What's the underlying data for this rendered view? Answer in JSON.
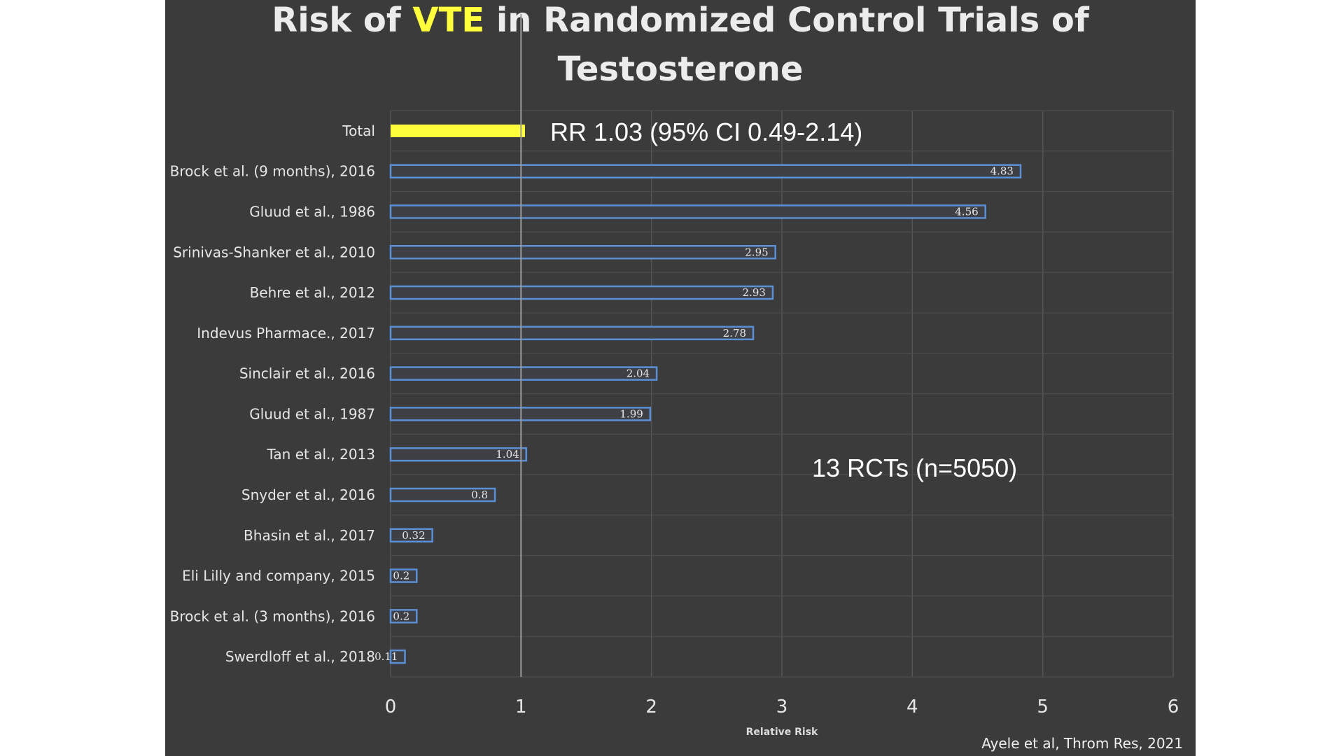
{
  "colors": {
    "background": "#3b3b3b",
    "highlight": "#ffff3c",
    "bar_outline": "#5b8fd6",
    "text": "#e6e6e6"
  },
  "title": {
    "part1": "Risk of ",
    "highlight": "VTE",
    "part2": " in Randomized Control Trials of",
    "line2": "Testosterone"
  },
  "annotations": {
    "summary": "RR 1.03 (95% CI 0.49-2.14)",
    "count": "13 RCTs (n=5050)"
  },
  "source": "Ayele et al, Throm Res, 2021",
  "chart_data": {
    "type": "bar",
    "orientation": "horizontal",
    "xlabel": "Relative Risk",
    "xlim": [
      0,
      6
    ],
    "xticks": [
      "0",
      "1",
      "2",
      "3",
      "4",
      "5",
      "6"
    ],
    "reference_line": 1,
    "grid": true,
    "categories": [
      "Total",
      "Brock et al. (9 months), 2016",
      "Gluud et al., 1986",
      "Srinivas-Shanker et al., 2010",
      "Behre et al., 2012",
      "Indevus Pharmace., 2017",
      "Sinclair et al., 2016",
      "Gluud et al., 1987",
      "Tan et al., 2013",
      "Snyder et al., 2016",
      "Bhasin et al., 2017",
      "Eli Lilly and company, 2015",
      "Brock et al. (3 months), 2016",
      "Swerdloff et al., 2018"
    ],
    "values": [
      1.03,
      4.83,
      4.56,
      2.95,
      2.93,
      2.78,
      2.04,
      1.99,
      1.04,
      0.8,
      0.32,
      0.2,
      0.2,
      0.11
    ],
    "data_labels": [
      "",
      "4.83",
      "4.56",
      "2.95",
      "2.93",
      "2.78",
      "2.04",
      "1.99",
      "1.04",
      "0.8",
      "0.32",
      "0.2",
      "0.2",
      "0.11"
    ]
  }
}
